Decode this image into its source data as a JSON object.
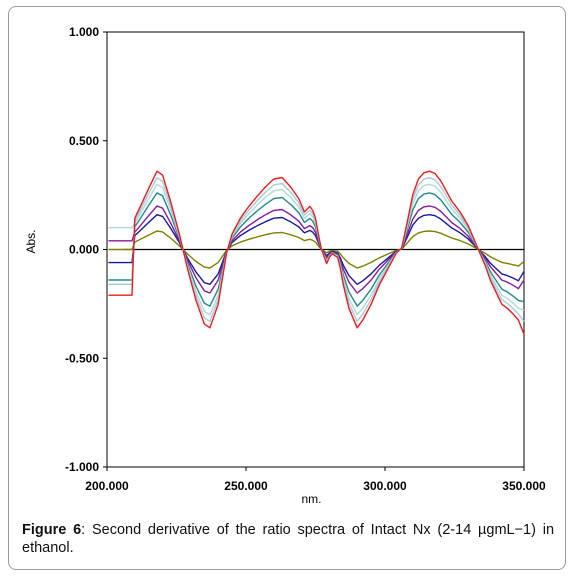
{
  "caption": {
    "label": "Figure 6",
    "text": ": Second derivative of the ratio spectra of Intact Nx (2-14 µgmL−1) in ethanol."
  },
  "chart_data": {
    "type": "line",
    "xlabel": "nm.",
    "ylabel": "Abs.",
    "xlim": [
      200,
      350
    ],
    "ylim": [
      -1.0,
      1.0
    ],
    "x_ticks": [
      "200.000",
      "250.000",
      "300.000",
      "350.000"
    ],
    "y_ticks": [
      "1.000",
      "0.500",
      "0.000",
      "-0.500",
      "-1.000"
    ],
    "grid": false,
    "legend": "none",
    "zero_line": 0,
    "shape": {
      "x": [
        206,
        207,
        208,
        209,
        210,
        212,
        215,
        218,
        220,
        223,
        226,
        229,
        232,
        235,
        237,
        240,
        243,
        245,
        248,
        251,
        254,
        257,
        260,
        263,
        266,
        269,
        271,
        273,
        274,
        275,
        276,
        277,
        278,
        279,
        280,
        281,
        282,
        283,
        284,
        285,
        287,
        290,
        292,
        295,
        298,
        301,
        304,
        306,
        308,
        310,
        312,
        314,
        316,
        318,
        320,
        322,
        324,
        327,
        330,
        333,
        336,
        338,
        340,
        342,
        344,
        346,
        348,
        350
      ],
      "y": [
        0,
        0,
        0,
        0,
        0.4,
        0.55,
        0.78,
        1.0,
        0.95,
        0.6,
        0.2,
        -0.25,
        -0.65,
        -0.95,
        -1.0,
        -0.7,
        -0.05,
        0.2,
        0.4,
        0.55,
        0.68,
        0.8,
        0.9,
        0.92,
        0.8,
        0.65,
        0.48,
        0.55,
        0.5,
        0.4,
        0.2,
        0.02,
        -0.08,
        -0.18,
        -0.1,
        -0.05,
        -0.08,
        -0.1,
        -0.25,
        -0.45,
        -0.75,
        -1.0,
        -0.9,
        -0.7,
        -0.45,
        -0.25,
        -0.05,
        0.02,
        0.35,
        0.7,
        0.9,
        0.98,
        1.0,
        0.97,
        0.88,
        0.75,
        0.62,
        0.48,
        0.3,
        0.05,
        -0.2,
        -0.4,
        -0.55,
        -0.7,
        -0.75,
        -0.82,
        -0.9,
        -1.0
      ]
    },
    "series": [
      {
        "color": "#808000",
        "amplitude": 0.085,
        "start": 0.0,
        "end": -0.055
      },
      {
        "color": "#1a1aa0",
        "amplitude": 0.16,
        "start": -0.06,
        "end": -0.1
      },
      {
        "color": "#8a1a9a",
        "amplitude": 0.2,
        "start": 0.04,
        "end": -0.14
      },
      {
        "color": "#208a8a",
        "amplitude": 0.26,
        "start": -0.14,
        "end": -0.24
      },
      {
        "color": "#b0d8d8",
        "amplitude": 0.3,
        "start": 0.1,
        "end": -0.28
      },
      {
        "color": "#a9c9df",
        "amplitude": 0.33,
        "start": -0.16,
        "end": -0.33
      },
      {
        "color": "#ee1c1c",
        "amplitude": 0.36,
        "start": -0.21,
        "end": -0.39
      }
    ]
  }
}
